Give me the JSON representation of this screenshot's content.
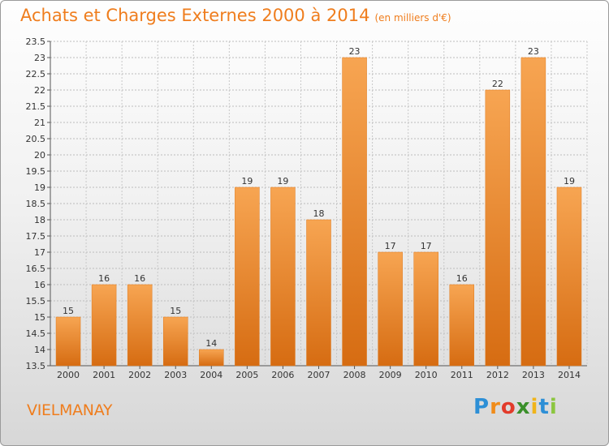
{
  "header": {
    "title": "Achats et Charges Externes 2000 à 2014",
    "subtitle": "(en milliers d'€)"
  },
  "footer": {
    "commune": "VIELMANAY",
    "logo_text": "Proxiti"
  },
  "colors": {
    "title": "#ef7d1d",
    "bar_top": "#f7a552",
    "bar_bottom": "#d86e14",
    "grid": "#b7b7b7"
  },
  "chart_data": {
    "type": "bar",
    "title": "Achats et Charges Externes 2000 à 2014",
    "subtitle": "(en milliers d'€)",
    "xlabel": "",
    "ylabel": "",
    "categories": [
      "2000",
      "2001",
      "2002",
      "2003",
      "2004",
      "2005",
      "2006",
      "2007",
      "2008",
      "2009",
      "2010",
      "2011",
      "2012",
      "2013",
      "2014"
    ],
    "values": [
      15,
      16,
      16,
      15,
      14,
      19,
      19,
      18,
      23,
      17,
      17,
      16,
      22,
      23,
      19
    ],
    "ylim": [
      13.5,
      23.5
    ],
    "yticks": [
      "13.5",
      "14",
      "14.5",
      "15",
      "15.5",
      "16",
      "16.5",
      "17",
      "17.5",
      "18",
      "18.5",
      "19",
      "19.5",
      "20",
      "20.5",
      "21",
      "21.5",
      "22",
      "22.5",
      "23",
      "23.5"
    ],
    "grid": true,
    "legend": "none"
  }
}
